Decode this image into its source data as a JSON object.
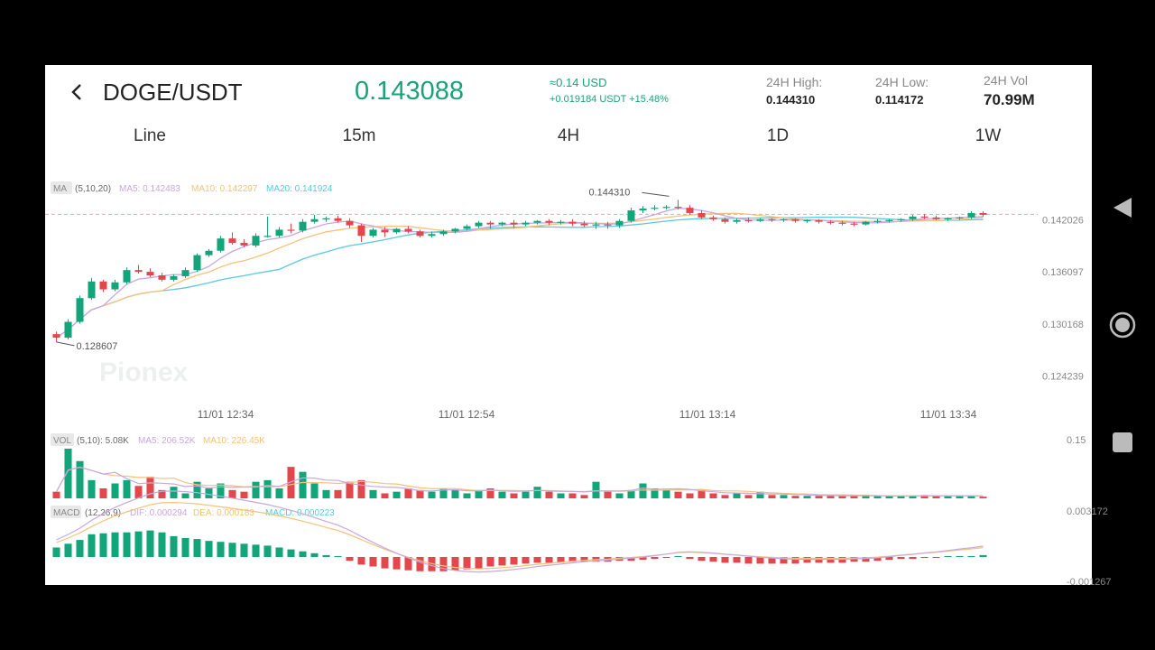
{
  "header": {
    "pair": "DOGE/USDT",
    "price": "0.143088",
    "usd_price": "≈0.14 USD",
    "change": "+0.019184 USDT  +15.48%",
    "high_label": "24H High:",
    "high_value": "0.144310",
    "low_label": "24H Low:",
    "low_value": "0.114172",
    "vol_label": "24H Vol",
    "vol_value": "70.99M"
  },
  "tabs": [
    "Line",
    "15m",
    "4H",
    "1D",
    "1W"
  ],
  "watermark": "Pionex",
  "colors": {
    "up": "#12a57a",
    "down": "#e2474c",
    "ma5": "#c8a8e0",
    "ma10": "#f4c27a",
    "ma20": "#5cc8e0",
    "accent": "#1aa27a"
  },
  "icons": {
    "back": "chevron-left-icon",
    "nav_back": "triangle-back-icon",
    "nav_home": "circle-home-icon",
    "nav_recent": "square-recents-icon"
  },
  "chart_data": {
    "type": "candlestick",
    "price_axis": {
      "ticks": [
        {
          "label": "0.142026",
          "value": 0.142026
        },
        {
          "label": "0.136097",
          "value": 0.136097
        },
        {
          "label": "0.130168",
          "value": 0.130168
        },
        {
          "label": "0.124239",
          "value": 0.124239
        }
      ],
      "ylim": [
        0.1214,
        0.1465
      ]
    },
    "time_axis": {
      "labels": [
        "11/01 12:34",
        "11/01 12:54",
        "11/01 13:14",
        "11/01 13:34"
      ]
    },
    "indicators": {
      "ma": {
        "tag": "MA",
        "params": "(5,10,20)",
        "ma5": "MA5: 0.142483",
        "ma10": "MA10: 0.142297",
        "ma20": "MA20: 0.141924"
      },
      "vol": {
        "tag": "VOL",
        "params": "(5,10): 5.08K",
        "ma5": "MA5: 206.52K",
        "ma10": "MA10: 226.45K",
        "scale_top": "0.15"
      },
      "macd": {
        "tag": "MACD",
        "params": "(12,26,9)",
        "dif": "DIF: 0.000294",
        "dea": "DEA: 0.000183",
        "macd": "MACD: 0.000223",
        "scale_top": "0.003172",
        "scale_bottom": "-0.001267"
      }
    },
    "annotations": {
      "high": "0.144310",
      "low": "0.128607",
      "last_line": 0.14265
    },
    "candles": [
      {
        "o": 0.129,
        "h": 0.1293,
        "l": 0.1281,
        "c": 0.1286
      },
      {
        "o": 0.1286,
        "h": 0.1307,
        "l": 0.1284,
        "c": 0.1304
      },
      {
        "o": 0.1304,
        "h": 0.1334,
        "l": 0.1302,
        "c": 0.1331
      },
      {
        "o": 0.1331,
        "h": 0.1354,
        "l": 0.1329,
        "c": 0.135
      },
      {
        "o": 0.135,
        "h": 0.1352,
        "l": 0.1338,
        "c": 0.1341
      },
      {
        "o": 0.1341,
        "h": 0.1352,
        "l": 0.1339,
        "c": 0.1349
      },
      {
        "o": 0.1349,
        "h": 0.1366,
        "l": 0.1347,
        "c": 0.1363
      },
      {
        "o": 0.1363,
        "h": 0.1369,
        "l": 0.1359,
        "c": 0.1361
      },
      {
        "o": 0.1361,
        "h": 0.1365,
        "l": 0.1355,
        "c": 0.1357
      },
      {
        "o": 0.1357,
        "h": 0.136,
        "l": 0.135,
        "c": 0.1352
      },
      {
        "o": 0.1352,
        "h": 0.1358,
        "l": 0.135,
        "c": 0.1356
      },
      {
        "o": 0.1356,
        "h": 0.1366,
        "l": 0.1354,
        "c": 0.1363
      },
      {
        "o": 0.1363,
        "h": 0.1382,
        "l": 0.1361,
        "c": 0.138
      },
      {
        "o": 0.138,
        "h": 0.1387,
        "l": 0.1378,
        "c": 0.1385
      },
      {
        "o": 0.1385,
        "h": 0.1402,
        "l": 0.1383,
        "c": 0.1399
      },
      {
        "o": 0.1399,
        "h": 0.1406,
        "l": 0.1392,
        "c": 0.1394
      },
      {
        "o": 0.1394,
        "h": 0.1398,
        "l": 0.1389,
        "c": 0.1391
      },
      {
        "o": 0.1391,
        "h": 0.1405,
        "l": 0.1389,
        "c": 0.1402
      },
      {
        "o": 0.1402,
        "h": 0.1424,
        "l": 0.14,
        "c": 0.1402
      },
      {
        "o": 0.1402,
        "h": 0.1412,
        "l": 0.14,
        "c": 0.1409
      },
      {
        "o": 0.1409,
        "h": 0.1416,
        "l": 0.1405,
        "c": 0.1408
      },
      {
        "o": 0.1408,
        "h": 0.1421,
        "l": 0.1406,
        "c": 0.1418
      },
      {
        "o": 0.1418,
        "h": 0.1426,
        "l": 0.1416,
        "c": 0.1421
      },
      {
        "o": 0.1421,
        "h": 0.1424,
        "l": 0.1418,
        "c": 0.1422
      },
      {
        "o": 0.1422,
        "h": 0.1425,
        "l": 0.1417,
        "c": 0.1419
      },
      {
        "o": 0.1419,
        "h": 0.1422,
        "l": 0.1411,
        "c": 0.1414
      },
      {
        "o": 0.1414,
        "h": 0.1416,
        "l": 0.1395,
        "c": 0.1402
      },
      {
        "o": 0.1402,
        "h": 0.1411,
        "l": 0.14,
        "c": 0.1409
      },
      {
        "o": 0.1409,
        "h": 0.1412,
        "l": 0.1401,
        "c": 0.1406
      },
      {
        "o": 0.1406,
        "h": 0.1411,
        "l": 0.1404,
        "c": 0.141
      },
      {
        "o": 0.141,
        "h": 0.1413,
        "l": 0.1405,
        "c": 0.1407
      },
      {
        "o": 0.1407,
        "h": 0.1409,
        "l": 0.14,
        "c": 0.1402
      },
      {
        "o": 0.1402,
        "h": 0.1407,
        "l": 0.14,
        "c": 0.1404
      },
      {
        "o": 0.1404,
        "h": 0.1409,
        "l": 0.1402,
        "c": 0.1407
      },
      {
        "o": 0.1407,
        "h": 0.1411,
        "l": 0.1405,
        "c": 0.141
      },
      {
        "o": 0.141,
        "h": 0.1415,
        "l": 0.1408,
        "c": 0.1413
      },
      {
        "o": 0.1413,
        "h": 0.1419,
        "l": 0.1411,
        "c": 0.1417
      },
      {
        "o": 0.1417,
        "h": 0.1419,
        "l": 0.141,
        "c": 0.1415
      },
      {
        "o": 0.1415,
        "h": 0.1418,
        "l": 0.1413,
        "c": 0.1417
      },
      {
        "o": 0.1417,
        "h": 0.142,
        "l": 0.1411,
        "c": 0.1415
      },
      {
        "o": 0.1415,
        "h": 0.1419,
        "l": 0.1413,
        "c": 0.1417
      },
      {
        "o": 0.1417,
        "h": 0.142,
        "l": 0.1415,
        "c": 0.1419
      },
      {
        "o": 0.1419,
        "h": 0.1421,
        "l": 0.1414,
        "c": 0.1417
      },
      {
        "o": 0.1417,
        "h": 0.142,
        "l": 0.1415,
        "c": 0.1418
      },
      {
        "o": 0.1418,
        "h": 0.1421,
        "l": 0.1413,
        "c": 0.1416
      },
      {
        "o": 0.1416,
        "h": 0.1419,
        "l": 0.1412,
        "c": 0.1414
      },
      {
        "o": 0.1414,
        "h": 0.1418,
        "l": 0.141,
        "c": 0.1415
      },
      {
        "o": 0.1415,
        "h": 0.1418,
        "l": 0.141,
        "c": 0.1414
      },
      {
        "o": 0.1414,
        "h": 0.1421,
        "l": 0.1411,
        "c": 0.1419
      },
      {
        "o": 0.1419,
        "h": 0.1434,
        "l": 0.1417,
        "c": 0.1431
      },
      {
        "o": 0.1431,
        "h": 0.1436,
        "l": 0.1428,
        "c": 0.1433
      },
      {
        "o": 0.1433,
        "h": 0.1437,
        "l": 0.1431,
        "c": 0.1434
      },
      {
        "o": 0.1434,
        "h": 0.1437,
        "l": 0.1432,
        "c": 0.1435
      },
      {
        "o": 0.1435,
        "h": 0.1443,
        "l": 0.1432,
        "c": 0.1434
      },
      {
        "o": 0.1434,
        "h": 0.1437,
        "l": 0.1426,
        "c": 0.1428
      },
      {
        "o": 0.1428,
        "h": 0.1431,
        "l": 0.1421,
        "c": 0.1423
      },
      {
        "o": 0.1423,
        "h": 0.1425,
        "l": 0.1419,
        "c": 0.1421
      },
      {
        "o": 0.1421,
        "h": 0.1423,
        "l": 0.1416,
        "c": 0.1418
      },
      {
        "o": 0.1418,
        "h": 0.1422,
        "l": 0.1416,
        "c": 0.142
      },
      {
        "o": 0.142,
        "h": 0.1423,
        "l": 0.1417,
        "c": 0.1419
      },
      {
        "o": 0.1419,
        "h": 0.1422,
        "l": 0.1418,
        "c": 0.1421
      },
      {
        "o": 0.1421,
        "h": 0.1422,
        "l": 0.1418,
        "c": 0.142
      },
      {
        "o": 0.142,
        "h": 0.1422,
        "l": 0.1418,
        "c": 0.1421
      },
      {
        "o": 0.1421,
        "h": 0.1422,
        "l": 0.1417,
        "c": 0.1419
      },
      {
        "o": 0.1419,
        "h": 0.1421,
        "l": 0.1417,
        "c": 0.142
      },
      {
        "o": 0.142,
        "h": 0.1421,
        "l": 0.1416,
        "c": 0.1418
      },
      {
        "o": 0.1418,
        "h": 0.142,
        "l": 0.1415,
        "c": 0.1417
      },
      {
        "o": 0.1417,
        "h": 0.1419,
        "l": 0.1414,
        "c": 0.1416
      },
      {
        "o": 0.1416,
        "h": 0.1418,
        "l": 0.1413,
        "c": 0.1415
      },
      {
        "o": 0.1415,
        "h": 0.1419,
        "l": 0.1414,
        "c": 0.1418
      },
      {
        "o": 0.1418,
        "h": 0.1421,
        "l": 0.1416,
        "c": 0.1419
      },
      {
        "o": 0.1419,
        "h": 0.1421,
        "l": 0.1417,
        "c": 0.142
      },
      {
        "o": 0.142,
        "h": 0.1422,
        "l": 0.1418,
        "c": 0.1421
      },
      {
        "o": 0.1421,
        "h": 0.1426,
        "l": 0.1419,
        "c": 0.1424
      },
      {
        "o": 0.1424,
        "h": 0.1427,
        "l": 0.1421,
        "c": 0.1423
      },
      {
        "o": 0.1423,
        "h": 0.1425,
        "l": 0.142,
        "c": 0.1421
      },
      {
        "o": 0.1421,
        "h": 0.1423,
        "l": 0.1419,
        "c": 0.1422
      },
      {
        "o": 0.1422,
        "h": 0.1424,
        "l": 0.142,
        "c": 0.1423
      },
      {
        "o": 0.1423,
        "h": 0.143,
        "l": 0.1421,
        "c": 0.1428
      },
      {
        "o": 0.1428,
        "h": 0.143,
        "l": 0.1424,
        "c": 0.1426
      }
    ],
    "volume": [
      8,
      60,
      45,
      22,
      12,
      18,
      22,
      15,
      26,
      10,
      14,
      6,
      20,
      12,
      18,
      10,
      8,
      20,
      22,
      12,
      38,
      32,
      18,
      10,
      10,
      20,
      22,
      10,
      6,
      8,
      12,
      10,
      8,
      12,
      10,
      6,
      10,
      12,
      8,
      6,
      8,
      14,
      8,
      6,
      6,
      4,
      20,
      8,
      6,
      10,
      18,
      12,
      10,
      8,
      6,
      10,
      6,
      4,
      6,
      4,
      8,
      4,
      4,
      3,
      3,
      3,
      4,
      3,
      3,
      3,
      3,
      3,
      3,
      3,
      4,
      3,
      3,
      3,
      3,
      2
    ],
    "macd_hist": [
      10,
      14,
      18,
      24,
      25,
      26,
      26,
      27,
      28,
      26,
      22,
      20,
      19,
      17,
      16,
      15,
      14,
      13,
      12,
      10,
      8,
      6,
      4,
      2,
      1,
      -4,
      -8,
      -10,
      -12,
      -13,
      -14,
      -15,
      -15,
      -15,
      -14,
      -13,
      -12,
      -10,
      -9,
      -8,
      -7,
      -6,
      -6,
      -6,
      -5,
      -5,
      -5,
      -5,
      -4,
      -4,
      -3,
      -2,
      -1,
      0,
      -2,
      -4,
      -5,
      -6,
      -6,
      -7,
      -7,
      -7,
      -7,
      -7,
      -6,
      -6,
      -6,
      -6,
      -5,
      -5,
      -4,
      -3,
      -2,
      -2,
      -1,
      -1,
      0,
      1,
      1,
      2
    ]
  }
}
